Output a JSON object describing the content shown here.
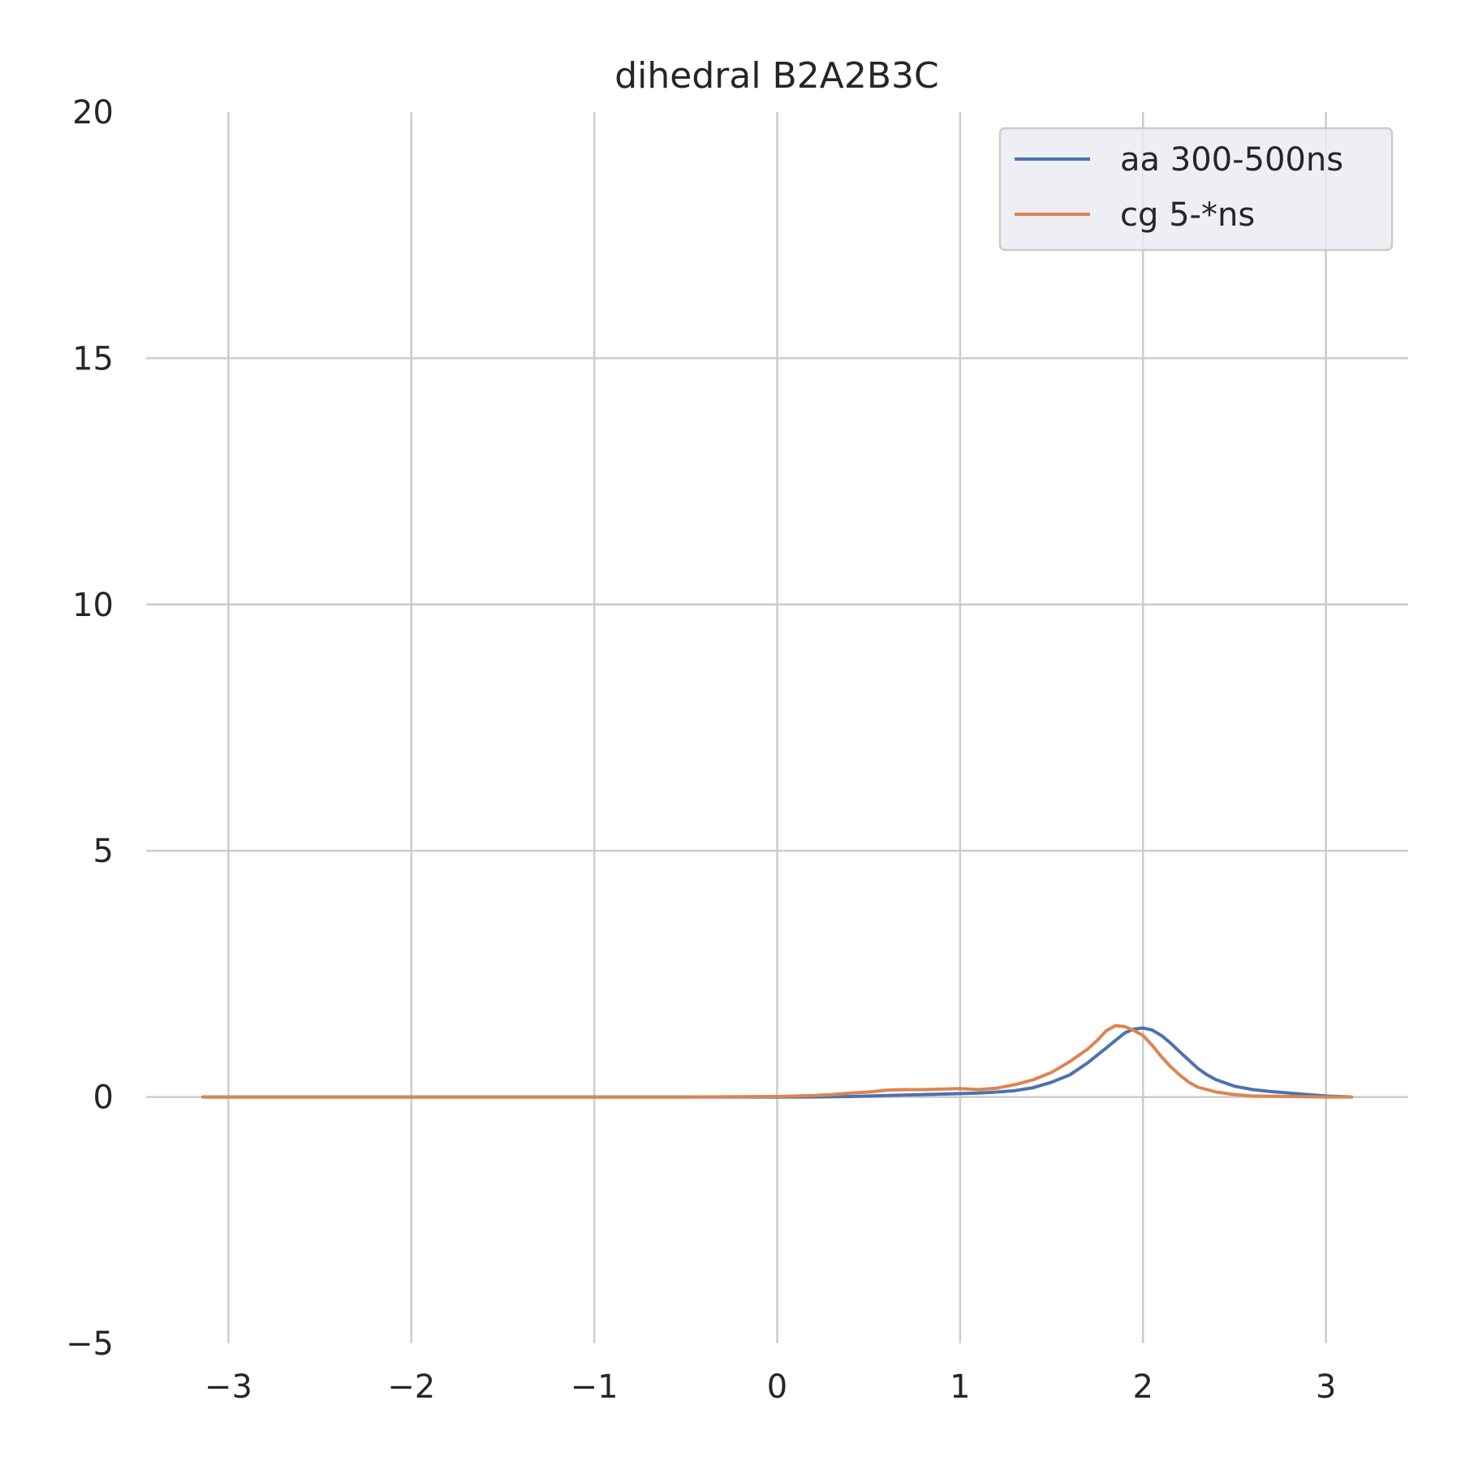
{
  "chart_data": {
    "type": "line",
    "title": "dihedral B2A2B3C",
    "xlabel": "",
    "ylabel": "",
    "xlim": [
      -3.45,
      3.45
    ],
    "ylim": [
      -5,
      20
    ],
    "xticks": [
      -3,
      -2,
      -1,
      0,
      1,
      2,
      3
    ],
    "xtick_labels": [
      "−3",
      "−2",
      "−1",
      "0",
      "1",
      "2",
      "3"
    ],
    "yticks": [
      -5,
      0,
      5,
      10,
      15,
      20
    ],
    "ytick_labels": [
      "−5",
      "0",
      "5",
      "10",
      "15",
      "20"
    ],
    "grid": true,
    "legend_position": "top-right",
    "series": [
      {
        "name": "aa 300-500ns",
        "color": "#4c72b0",
        "points": [
          [
            -3.14,
            0.0
          ],
          [
            -2.5,
            0.0
          ],
          [
            -2.0,
            0.0
          ],
          [
            -1.5,
            0.0
          ],
          [
            -1.0,
            0.0
          ],
          [
            -0.5,
            0.0
          ],
          [
            0.0,
            0.0
          ],
          [
            0.2,
            0.0
          ],
          [
            0.4,
            0.01
          ],
          [
            0.6,
            0.03
          ],
          [
            0.8,
            0.05
          ],
          [
            1.0,
            0.07
          ],
          [
            1.1,
            0.08
          ],
          [
            1.2,
            0.1
          ],
          [
            1.3,
            0.13
          ],
          [
            1.4,
            0.19
          ],
          [
            1.5,
            0.3
          ],
          [
            1.6,
            0.45
          ],
          [
            1.7,
            0.7
          ],
          [
            1.8,
            1.0
          ],
          [
            1.85,
            1.15
          ],
          [
            1.9,
            1.3
          ],
          [
            1.95,
            1.38
          ],
          [
            2.0,
            1.4
          ],
          [
            2.05,
            1.36
          ],
          [
            2.1,
            1.25
          ],
          [
            2.15,
            1.1
          ],
          [
            2.2,
            0.92
          ],
          [
            2.25,
            0.75
          ],
          [
            2.3,
            0.58
          ],
          [
            2.35,
            0.45
          ],
          [
            2.4,
            0.35
          ],
          [
            2.5,
            0.22
          ],
          [
            2.6,
            0.15
          ],
          [
            2.7,
            0.11
          ],
          [
            2.8,
            0.08
          ],
          [
            2.9,
            0.05
          ],
          [
            3.0,
            0.02
          ],
          [
            3.14,
            0.0
          ]
        ]
      },
      {
        "name": "cg 5-*ns",
        "color": "#dd8452",
        "points": [
          [
            -3.14,
            0.0
          ],
          [
            -2.5,
            0.0
          ],
          [
            -2.0,
            0.0
          ],
          [
            -1.5,
            0.0
          ],
          [
            -1.0,
            0.0
          ],
          [
            -0.5,
            0.0
          ],
          [
            0.0,
            0.01
          ],
          [
            0.2,
            0.03
          ],
          [
            0.3,
            0.05
          ],
          [
            0.4,
            0.08
          ],
          [
            0.5,
            0.1
          ],
          [
            0.6,
            0.14
          ],
          [
            0.7,
            0.15
          ],
          [
            0.8,
            0.15
          ],
          [
            0.9,
            0.16
          ],
          [
            1.0,
            0.17
          ],
          [
            1.1,
            0.15
          ],
          [
            1.2,
            0.18
          ],
          [
            1.3,
            0.25
          ],
          [
            1.4,
            0.35
          ],
          [
            1.5,
            0.5
          ],
          [
            1.6,
            0.72
          ],
          [
            1.7,
            0.98
          ],
          [
            1.75,
            1.15
          ],
          [
            1.8,
            1.35
          ],
          [
            1.85,
            1.45
          ],
          [
            1.9,
            1.43
          ],
          [
            1.95,
            1.35
          ],
          [
            2.0,
            1.25
          ],
          [
            2.05,
            1.05
          ],
          [
            2.1,
            0.82
          ],
          [
            2.15,
            0.62
          ],
          [
            2.2,
            0.45
          ],
          [
            2.25,
            0.3
          ],
          [
            2.3,
            0.2
          ],
          [
            2.4,
            0.1
          ],
          [
            2.5,
            0.05
          ],
          [
            2.6,
            0.02
          ],
          [
            2.8,
            0.01
          ],
          [
            3.0,
            0.0
          ],
          [
            3.14,
            0.0
          ]
        ]
      }
    ]
  }
}
